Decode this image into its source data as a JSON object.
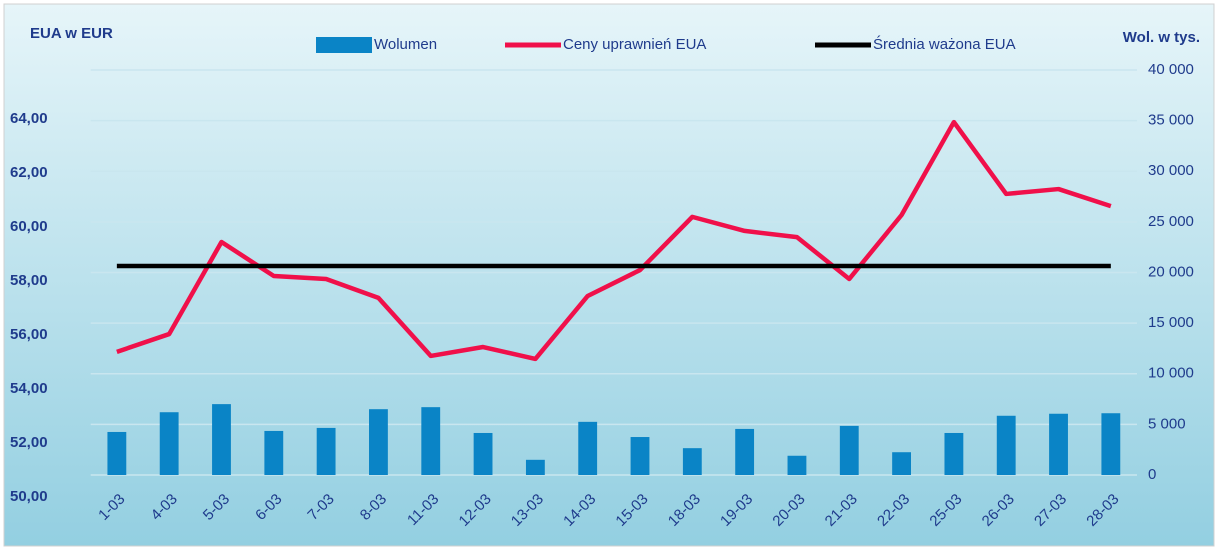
{
  "chart_data": {
    "type": "combo",
    "y_label": "EUA w EUR",
    "y2_label": "Wol. w tys.",
    "categories": [
      "1-03",
      "4-03",
      "5-03",
      "6-03",
      "7-03",
      "8-03",
      "11-03",
      "12-03",
      "13-03",
      "14-03",
      "15-03",
      "18-03",
      "19-03",
      "20-03",
      "21-03",
      "22-03",
      "25-03",
      "26-03",
      "27-03",
      "28-03"
    ],
    "series": [
      {
        "name": "Wolumen",
        "type": "bar",
        "axis": "y2",
        "color": "#0a84c6",
        "values": [
          4250,
          6200,
          7000,
          4350,
          4650,
          6500,
          6700,
          4150,
          1500,
          5250,
          3750,
          2650,
          4550,
          1900,
          4850,
          2250,
          4150,
          5850,
          6050,
          6100
        ]
      },
      {
        "name": "Ceny uprawnień EUA",
        "type": "line",
        "axis": "y",
        "color": "#f0104a",
        "values": [
          54.56,
          55.22,
          58.63,
          57.37,
          57.26,
          56.56,
          54.41,
          54.74,
          54.3,
          56.63,
          57.59,
          59.56,
          59.04,
          58.81,
          57.26,
          59.63,
          63.07,
          60.41,
          60.59,
          59.96
        ]
      },
      {
        "name": "Średnia ważona EUA",
        "type": "line",
        "axis": "y",
        "color": "#000000",
        "values": [
          57.74,
          57.74,
          57.74,
          57.74,
          57.74,
          57.74,
          57.74,
          57.74,
          57.74,
          57.74,
          57.74,
          57.74,
          57.74,
          57.74,
          57.74,
          57.74,
          57.74,
          57.74,
          57.74,
          57.74
        ]
      }
    ],
    "ylim": [
      50,
      65
    ],
    "yticks": [
      {
        "value": 50,
        "label": "50,00"
      },
      {
        "value": 52,
        "label": "52,00"
      },
      {
        "value": 54,
        "label": "54,00"
      },
      {
        "value": 56,
        "label": "56,00"
      },
      {
        "value": 58,
        "label": "58,00"
      },
      {
        "value": 60,
        "label": "60,00"
      },
      {
        "value": 62,
        "label": "62,00"
      },
      {
        "value": 64,
        "label": "64,00"
      }
    ],
    "y2lim": [
      0,
      40000
    ],
    "y2ticks": [
      0,
      {
        "value": 5000,
        "label": "5 000"
      },
      {
        "value": 10000,
        "label": "10 000"
      },
      {
        "value": 15000,
        "label": "15 000"
      },
      {
        "value": 20000,
        "label": "20 000"
      },
      {
        "value": 25000,
        "label": "25 000"
      },
      {
        "value": 30000,
        "label": "30 000"
      },
      {
        "value": 35000,
        "label": "35 000"
      },
      {
        "value": 40000,
        "label": "40 000"
      }
    ],
    "grid": true,
    "legend": "top"
  }
}
